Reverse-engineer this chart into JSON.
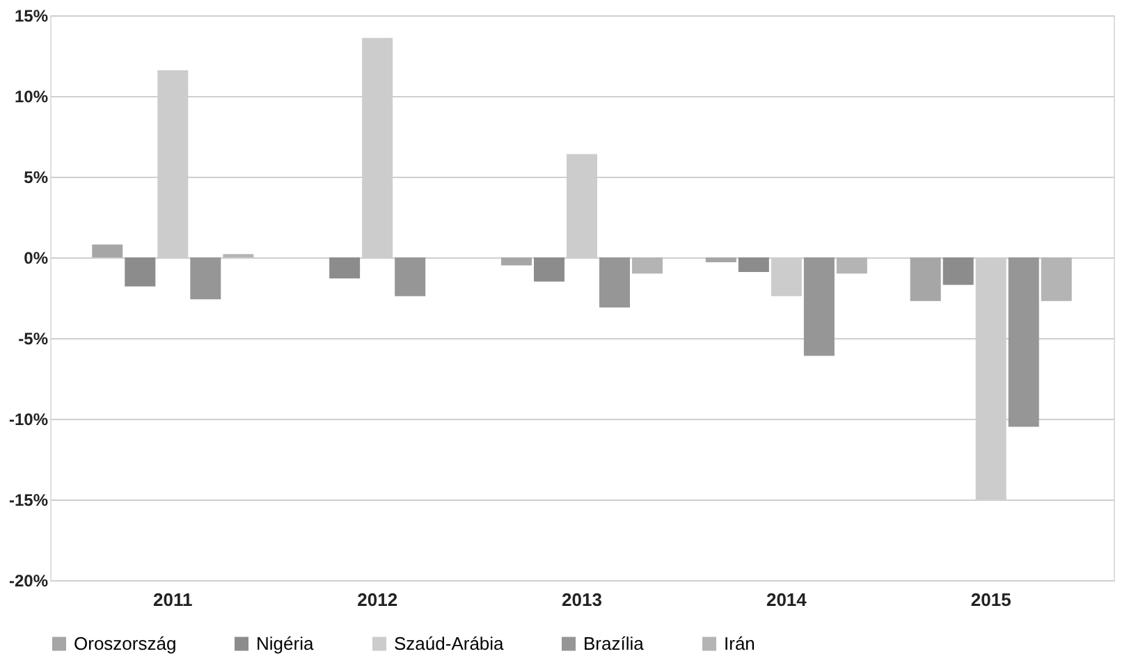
{
  "chart_data": {
    "type": "bar",
    "categories": [
      "2011",
      "2012",
      "2013",
      "2014",
      "2015"
    ],
    "series": [
      {
        "name": "Oroszország",
        "color": "#a6a6a6",
        "values": [
          0.8,
          null,
          -0.5,
          -0.3,
          -2.7
        ]
      },
      {
        "name": "Nigéria",
        "color": "#8c8c8c",
        "values": [
          -1.8,
          -1.3,
          -1.5,
          -0.9,
          -1.7
        ]
      },
      {
        "name": "Szaúd-Arábia",
        "color": "#cccccc",
        "values": [
          11.6,
          13.6,
          6.4,
          -2.4,
          -15.0
        ]
      },
      {
        "name": "Brazília",
        "color": "#969696",
        "values": [
          -2.6,
          -2.4,
          -3.1,
          -6.1,
          -10.5
        ]
      },
      {
        "name": "Irán",
        "color": "#b4b4b4",
        "values": [
          0.2,
          null,
          -1.0,
          -1.0,
          -2.7
        ]
      }
    ],
    "ylim": [
      -20,
      15
    ],
    "yticks": [
      {
        "value": -20,
        "label": "-20%"
      },
      {
        "value": -15,
        "label": "-15%"
      },
      {
        "value": -10,
        "label": "-10%"
      },
      {
        "value": -5,
        "label": "-5%"
      },
      {
        "value": 0,
        "label": "0%"
      },
      {
        "value": 5,
        "label": "5%"
      },
      {
        "value": 10,
        "label": "10%"
      },
      {
        "value": 15,
        "label": "15%"
      }
    ],
    "grid": "y",
    "legend": "bottom"
  }
}
